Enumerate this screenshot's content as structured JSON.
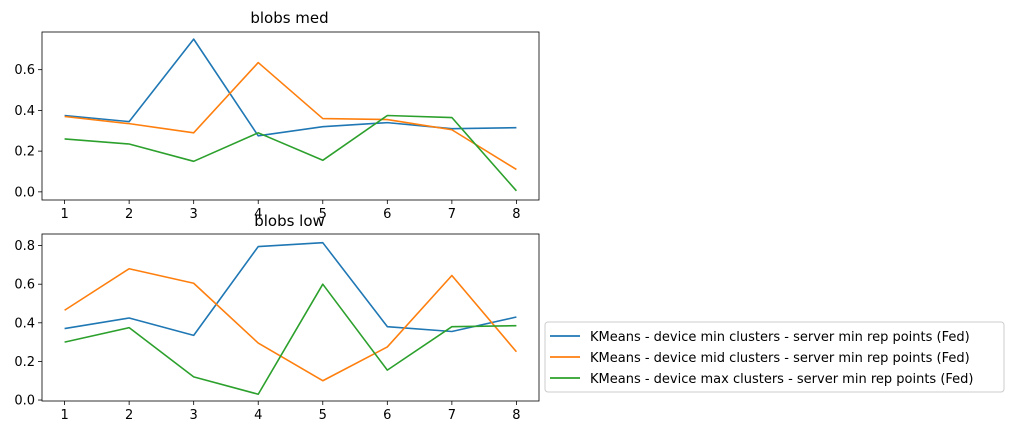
{
  "chart_data": [
    {
      "type": "line",
      "title": "blobs med",
      "xlabel": "",
      "ylabel": "",
      "x": [
        1,
        2,
        3,
        4,
        5,
        6,
        7,
        8
      ],
      "xticks": [
        1,
        2,
        3,
        4,
        5,
        6,
        7,
        8
      ],
      "yticks": [
        0.0,
        0.2,
        0.4,
        0.6
      ],
      "xlim": [
        0.65,
        8.35
      ],
      "ylim": [
        -0.04,
        0.785
      ],
      "grid": false,
      "series": [
        {
          "name": "KMeans - device min clusters - server min rep points (Fed)",
          "color": "#1f77b4",
          "values": [
            0.375,
            0.345,
            0.75,
            0.275,
            0.32,
            0.34,
            0.31,
            0.315
          ]
        },
        {
          "name": "KMeans - device mid clusters - server min rep points (Fed)",
          "color": "#ff7f0e",
          "values": [
            0.37,
            0.335,
            0.29,
            0.635,
            0.36,
            0.355,
            0.305,
            0.11
          ]
        },
        {
          "name": "KMeans - device max clusters - server min rep points (Fed)",
          "color": "#2ca02c",
          "values": [
            0.26,
            0.235,
            0.15,
            0.29,
            0.155,
            0.375,
            0.365,
            0.005
          ]
        }
      ]
    },
    {
      "type": "line",
      "title": "blobs low",
      "xlabel": "",
      "ylabel": "",
      "x": [
        1,
        2,
        3,
        4,
        5,
        6,
        7,
        8
      ],
      "xticks": [
        1,
        2,
        3,
        4,
        5,
        6,
        7,
        8
      ],
      "yticks": [
        0.0,
        0.2,
        0.4,
        0.6,
        0.8
      ],
      "xlim": [
        0.65,
        8.35
      ],
      "ylim": [
        -0.005,
        0.86
      ],
      "grid": false,
      "series": [
        {
          "name": "KMeans - device min clusters - server min rep points (Fed)",
          "color": "#1f77b4",
          "values": [
            0.37,
            0.425,
            0.335,
            0.795,
            0.815,
            0.38,
            0.355,
            0.43
          ]
        },
        {
          "name": "KMeans - device mid clusters - server min rep points (Fed)",
          "color": "#ff7f0e",
          "values": [
            0.465,
            0.68,
            0.605,
            0.295,
            0.1,
            0.275,
            0.645,
            0.25
          ]
        },
        {
          "name": "KMeans - device max clusters - server min rep points (Fed)",
          "color": "#2ca02c",
          "values": [
            0.3,
            0.375,
            0.12,
            0.03,
            0.6,
            0.155,
            0.38,
            0.385
          ]
        }
      ]
    }
  ],
  "legend": {
    "placement": "right, outside lower plot",
    "entries": [
      "KMeans - device min clusters - server min rep points (Fed)",
      "KMeans - device mid clusters - server min rep points (Fed)",
      "KMeans - device max clusters - server min rep points (Fed)"
    ]
  }
}
